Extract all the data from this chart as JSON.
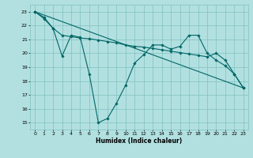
{
  "title": "",
  "xlabel": "Humidex (Indice chaleur)",
  "bg_color": "#b2e0e0",
  "grid_color": "#80c0c0",
  "line_color": "#006666",
  "xlim": [
    -0.5,
    23.5
  ],
  "ylim": [
    14.5,
    23.5
  ],
  "xticks": [
    0,
    1,
    2,
    3,
    4,
    5,
    6,
    7,
    8,
    9,
    10,
    11,
    12,
    13,
    14,
    15,
    16,
    17,
    18,
    19,
    20,
    21,
    22,
    23
  ],
  "yticks": [
    15,
    16,
    17,
    18,
    19,
    20,
    21,
    22,
    23
  ],
  "line1_x": [
    0,
    23
  ],
  "line1_y": [
    23.0,
    17.5
  ],
  "line2_x": [
    0,
    1,
    2,
    3,
    4,
    5,
    6,
    7,
    8,
    9,
    10,
    11,
    12,
    13,
    14,
    15,
    16,
    17,
    18,
    19,
    20,
    21,
    22,
    23
  ],
  "line2_y": [
    23.0,
    22.6,
    21.8,
    21.3,
    21.2,
    21.1,
    21.05,
    20.95,
    20.85,
    20.75,
    20.6,
    20.5,
    20.45,
    20.35,
    20.25,
    20.15,
    20.05,
    19.95,
    19.85,
    19.75,
    20.0,
    19.5,
    18.5,
    17.5
  ],
  "line3_x": [
    0,
    1,
    2,
    3,
    4,
    5,
    6,
    7,
    8,
    9,
    10,
    11,
    12,
    13,
    14,
    15,
    16,
    17,
    18,
    19,
    20,
    21,
    22,
    23
  ],
  "line3_y": [
    23.0,
    22.5,
    21.8,
    19.8,
    21.3,
    21.15,
    18.5,
    15.0,
    15.3,
    16.4,
    17.7,
    19.3,
    19.9,
    20.6,
    20.6,
    20.3,
    20.5,
    21.3,
    21.3,
    20.0,
    19.5,
    19.1,
    18.5,
    17.5
  ]
}
